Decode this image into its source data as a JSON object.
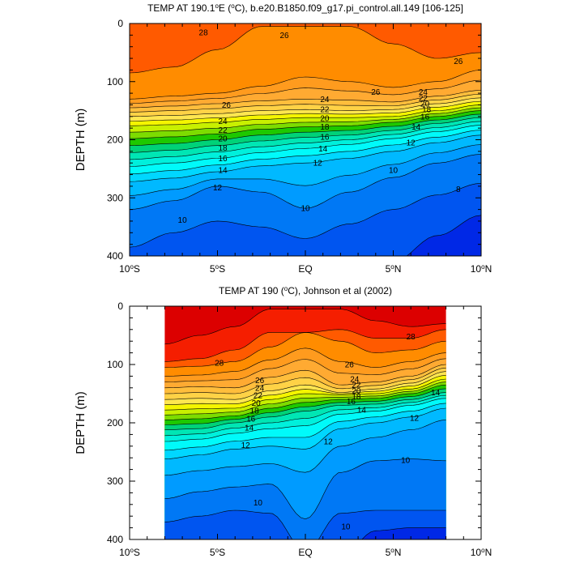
{
  "chart_data": [
    {
      "type": "contour",
      "title_parts": [
        "TEMP AT 190.1",
        "o",
        "E (",
        "o",
        "C), b.e20.B1850.f09_g17.pi_control.all.149 [106-125]"
      ],
      "title": "TEMP AT 190.1°E (°C), b.e20.B1850.f09_g17.pi_control.all.149 [106-125]",
      "ylabel": "DEPTH (m)",
      "xlim": [
        -10,
        10
      ],
      "ylim": [
        400,
        0
      ],
      "x_ticks": [
        {
          "v": -10,
          "label": "10",
          "sup": "o",
          "suffix": "S"
        },
        {
          "v": -5,
          "label": "5",
          "sup": "o",
          "suffix": "S"
        },
        {
          "v": 0,
          "label": "EQ",
          "sup": "",
          "suffix": ""
        },
        {
          "v": 5,
          "label": "5",
          "sup": "o",
          "suffix": "N"
        },
        {
          "v": 10,
          "label": "10",
          "sup": "o",
          "suffix": "N"
        }
      ],
      "y_ticks": [
        "0",
        "100",
        "200",
        "300",
        "400"
      ],
      "data_xlim": [
        -10,
        10
      ],
      "contour_interval": 1,
      "isotherm_depths": {
        "x": [
          -10,
          -7.5,
          -5,
          -2.5,
          0,
          2.5,
          5,
          7.5,
          10
        ],
        "levels": [
          {
            "t": 27,
            "d": [
              85,
              75,
              45,
              5,
              5,
              5,
              35,
              60,
              50
            ]
          },
          {
            "t": 26,
            "d": [
              130,
              125,
              120,
              108,
              92,
              100,
              110,
              100,
              80
            ]
          },
          {
            "t": 24,
            "d": [
              145,
              142,
              138,
              133,
              130,
              132,
              135,
              125,
              115
            ]
          },
          {
            "t": 22,
            "d": [
              160,
              158,
              155,
              150,
              148,
              150,
              148,
              138,
              128
            ]
          },
          {
            "t": 20,
            "d": [
              176,
              174,
              170,
              165,
              162,
              162,
              160,
              150,
              140
            ]
          },
          {
            "t": 18,
            "d": [
              198,
              195,
              190,
              182,
              178,
              176,
              170,
              160,
              150
            ]
          },
          {
            "t": 16,
            "d": [
              222,
              218,
              210,
              202,
              196,
              192,
              184,
              172,
              162
            ]
          },
          {
            "t": 14,
            "d": [
              246,
              240,
              232,
              222,
              215,
              208,
              198,
              186,
              175
            ]
          },
          {
            "t": 12,
            "d": [
              272,
              266,
              255,
              245,
              240,
              232,
              220,
              205,
              192
            ]
          },
          {
            "t": 10,
            "d": [
              320,
              305,
              280,
              290,
              318,
              290,
              265,
              240,
              225
            ]
          },
          {
            "t": 9,
            "d": [
              385,
              360,
              340,
              350,
              370,
              345,
              320,
              295,
              275
            ]
          },
          {
            "t": 8,
            "d": [
              470,
              455,
              430,
              445,
              470,
              445,
              410,
              365,
              330
            ]
          }
        ]
      },
      "contour_labels": [
        {
          "x": -5.8,
          "y": 15,
          "text": "28"
        },
        {
          "x": -1.2,
          "y": 20,
          "text": "26"
        },
        {
          "x": 4.0,
          "y": 118,
          "text": "26"
        },
        {
          "x": 8.7,
          "y": 65,
          "text": "26"
        },
        {
          "x": -4.5,
          "y": 140,
          "text": "26"
        },
        {
          "x": -4.7,
          "y": 168,
          "text": "24"
        },
        {
          "x": -4.7,
          "y": 183,
          "text": "22"
        },
        {
          "x": -4.7,
          "y": 198,
          "text": "20"
        },
        {
          "x": -4.7,
          "y": 214,
          "text": "18"
        },
        {
          "x": -4.7,
          "y": 232,
          "text": "16"
        },
        {
          "x": -4.7,
          "y": 252,
          "text": "14"
        },
        {
          "x": -5.0,
          "y": 282,
          "text": "12"
        },
        {
          "x": -7.0,
          "y": 338,
          "text": "10"
        },
        {
          "x": 1.1,
          "y": 130,
          "text": "24"
        },
        {
          "x": 1.1,
          "y": 148,
          "text": "22"
        },
        {
          "x": 1.1,
          "y": 163,
          "text": "20"
        },
        {
          "x": 1.1,
          "y": 178,
          "text": "18"
        },
        {
          "x": 1.1,
          "y": 195,
          "text": "16"
        },
        {
          "x": 1.0,
          "y": 215,
          "text": "14"
        },
        {
          "x": 0.7,
          "y": 240,
          "text": "12"
        },
        {
          "x": 0.0,
          "y": 318,
          "text": "10"
        },
        {
          "x": 6.7,
          "y": 118,
          "text": "24"
        },
        {
          "x": 6.7,
          "y": 128,
          "text": "22"
        },
        {
          "x": 6.8,
          "y": 138,
          "text": "20"
        },
        {
          "x": 6.9,
          "y": 148,
          "text": "18"
        },
        {
          "x": 6.8,
          "y": 160,
          "text": "16"
        },
        {
          "x": 6.3,
          "y": 178,
          "text": "14"
        },
        {
          "x": 6.0,
          "y": 205,
          "text": "12"
        },
        {
          "x": 5.0,
          "y": 252,
          "text": "10"
        },
        {
          "x": 8.7,
          "y": 285,
          "text": "8"
        }
      ]
    },
    {
      "type": "contour",
      "title_parts": [
        "TEMP AT 190 (",
        "o",
        "C), Johnson et al (2002)"
      ],
      "title": "TEMP AT 190 (°C), Johnson et al (2002)",
      "ylabel": "DEPTH (m)",
      "xlim": [
        -10,
        10
      ],
      "ylim": [
        400,
        0
      ],
      "x_ticks": [
        {
          "v": -10,
          "label": "10",
          "sup": "o",
          "suffix": "S"
        },
        {
          "v": -5,
          "label": "5",
          "sup": "o",
          "suffix": "S"
        },
        {
          "v": 0,
          "label": "EQ",
          "sup": "",
          "suffix": ""
        },
        {
          "v": 5,
          "label": "5",
          "sup": "o",
          "suffix": "N"
        },
        {
          "v": 10,
          "label": "10",
          "sup": "o",
          "suffix": "N"
        }
      ],
      "y_ticks": [
        "0",
        "100",
        "200",
        "300",
        "400"
      ],
      "data_xlim": [
        -8,
        8
      ],
      "contour_interval": 1,
      "isotherm_depths": {
        "x": [
          -8,
          -6,
          -4,
          -2,
          0,
          2,
          4,
          6,
          8
        ],
        "levels": [
          {
            "t": 29,
            "d": [
              65,
              50,
              35,
              5,
              5,
              5,
              25,
              35,
              30
            ]
          },
          {
            "t": 28,
            "d": [
              95,
              90,
              75,
              45,
              45,
              40,
              55,
              55,
              40
            ]
          },
          {
            "t": 27,
            "d": [
              105,
              103,
              95,
              70,
              45,
              60,
              80,
              75,
              60
            ]
          },
          {
            "t": 26,
            "d": [
              120,
              118,
              112,
              92,
              72,
              95,
              105,
              95,
              80
            ]
          },
          {
            "t": 24,
            "d": [
              140,
              138,
              140,
              122,
              110,
              135,
              130,
              120,
              100
            ]
          },
          {
            "t": 22,
            "d": [
              160,
              158,
              160,
              145,
              135,
              148,
              142,
              132,
              112
            ]
          },
          {
            "t": 20,
            "d": [
              178,
              176,
              175,
              160,
              150,
              152,
              150,
              142,
              125
            ]
          },
          {
            "t": 18,
            "d": [
              195,
              193,
              188,
              175,
              165,
              160,
              158,
              150,
              135
            ]
          },
          {
            "t": 16,
            "d": [
              212,
              210,
              200,
              190,
              180,
              170,
              168,
              160,
              148
            ]
          },
          {
            "t": 14,
            "d": [
              232,
              228,
              218,
              210,
              205,
              185,
              180,
              170,
              158
            ]
          },
          {
            "t": 12,
            "d": [
              262,
              255,
              245,
              240,
              245,
              210,
              200,
              190,
              175
            ]
          },
          {
            "t": 11,
            "d": [
              290,
              282,
              275,
              270,
              285,
              240,
              225,
              212,
              195
            ]
          },
          {
            "t": 10,
            "d": [
              330,
              318,
              310,
              305,
              365,
              285,
              265,
              262,
              265
            ]
          },
          {
            "t": 9,
            "d": [
              370,
              360,
              350,
              355,
              420,
              355,
              350,
              350,
              350
            ]
          },
          {
            "t": 8,
            "d": [
              460,
              450,
              440,
              450,
              480,
              430,
              385,
              380,
              380
            ]
          }
        ]
      },
      "contour_labels": [
        {
          "x": 6.0,
          "y": 52,
          "text": "28"
        },
        {
          "x": -4.9,
          "y": 97,
          "text": "28"
        },
        {
          "x": 2.5,
          "y": 100,
          "text": "26"
        },
        {
          "x": -2.6,
          "y": 127,
          "text": "26"
        },
        {
          "x": -2.6,
          "y": 140,
          "text": "24"
        },
        {
          "x": -2.7,
          "y": 153,
          "text": "22"
        },
        {
          "x": -2.8,
          "y": 166,
          "text": "20"
        },
        {
          "x": -2.9,
          "y": 179,
          "text": "18"
        },
        {
          "x": -3.1,
          "y": 193,
          "text": "16"
        },
        {
          "x": -3.2,
          "y": 208,
          "text": "14"
        },
        {
          "x": -3.4,
          "y": 238,
          "text": "12"
        },
        {
          "x": 1.3,
          "y": 232,
          "text": "12"
        },
        {
          "x": -2.7,
          "y": 337,
          "text": "10"
        },
        {
          "x": 2.8,
          "y": 125,
          "text": "24"
        },
        {
          "x": 2.9,
          "y": 135,
          "text": "22"
        },
        {
          "x": 2.9,
          "y": 145,
          "text": "20"
        },
        {
          "x": 2.9,
          "y": 155,
          "text": "18"
        },
        {
          "x": 2.6,
          "y": 163,
          "text": "16"
        },
        {
          "x": 3.2,
          "y": 178,
          "text": "14"
        },
        {
          "x": 6.2,
          "y": 192,
          "text": "12"
        },
        {
          "x": 7.4,
          "y": 148,
          "text": "14"
        },
        {
          "x": 5.7,
          "y": 264,
          "text": "10"
        },
        {
          "x": 2.3,
          "y": 378,
          "text": "10"
        }
      ]
    }
  ],
  "colors": {
    "palette": {
      "30": "#dc0000",
      "29": "#f51e00",
      "28": "#ff5a00",
      "27": "#ff8c00",
      "26": "#ff9b1e",
      "25": "#ffaa32",
      "24": "#ffbe3c",
      "23": "#ffd246",
      "22": "#ffe650",
      "21": "#f5f500",
      "20": "#c8f000",
      "19": "#7ddc00",
      "18": "#1ec800",
      "17": "#00d278",
      "16": "#00e6b4",
      "15": "#00f0dc",
      "14": "#00fafa",
      "13": "#00d7ff",
      "12": "#00b9ff",
      "11": "#009bff",
      "10": "#0078f5",
      "9": "#0055f0",
      "8": "#0028e6",
      "7": "#6400d2"
    }
  }
}
